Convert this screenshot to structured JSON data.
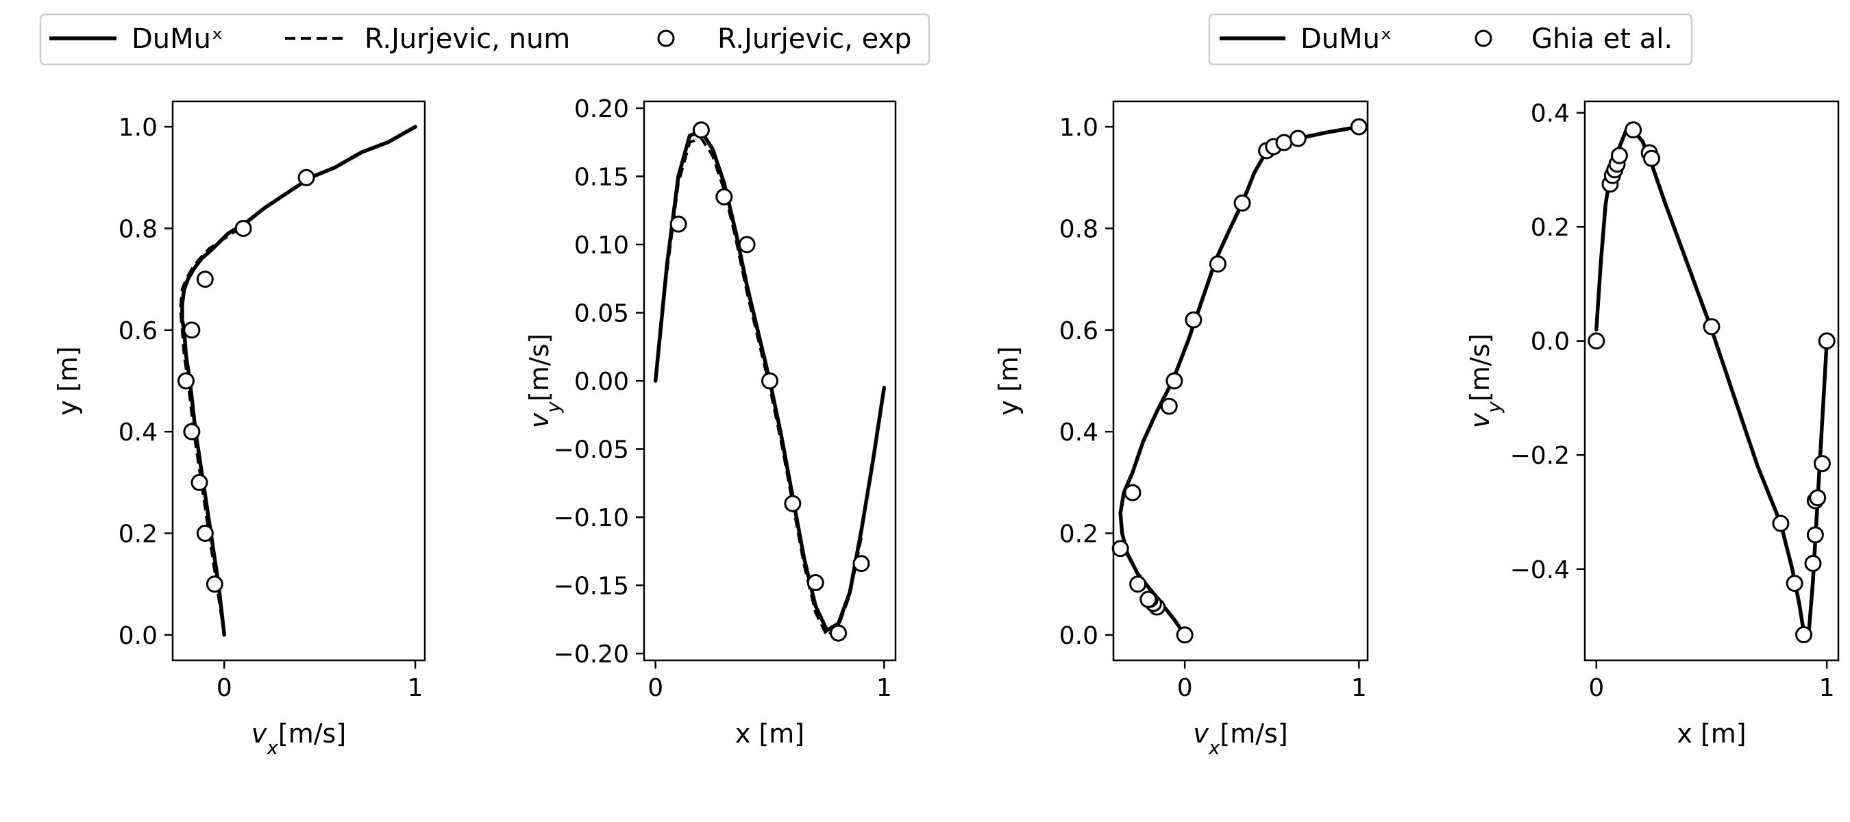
{
  "legends": [
    {
      "entries": [
        {
          "label": "DuMuˣ",
          "style": "solid"
        },
        {
          "label": "R.Jurjevic, num",
          "style": "dashed"
        },
        {
          "label": "R.Jurjevic, exp",
          "style": "marker"
        }
      ]
    },
    {
      "entries": [
        {
          "label": "DuMuˣ",
          "style": "solid"
        },
        {
          "label": "Ghia et al.",
          "style": "marker"
        }
      ]
    }
  ],
  "chart_data": [
    {
      "type": "line",
      "xlabel": "v_x[m/s]",
      "ylabel": "y [m]",
      "xlim": [
        -0.27,
        1.05
      ],
      "ylim": [
        -0.05,
        1.05
      ],
      "xticks": [
        0,
        1
      ],
      "yticks": [
        0.0,
        0.2,
        0.4,
        0.6,
        0.8,
        1.0
      ],
      "ytick_decimals": 1,
      "series": [
        {
          "name": "DuMuˣ",
          "style": "solid",
          "x": [
            0.0,
            -0.03,
            -0.07,
            -0.11,
            -0.15,
            -0.18,
            -0.2,
            -0.21,
            -0.22,
            -0.22,
            -0.21,
            -0.19,
            -0.16,
            -0.12,
            -0.06,
            0.02,
            0.11,
            0.21,
            0.33,
            0.45,
            0.58,
            0.72,
            0.86,
            1.0
          ],
          "y": [
            0.0,
            0.1,
            0.2,
            0.3,
            0.4,
            0.5,
            0.55,
            0.6,
            0.62,
            0.65,
            0.68,
            0.7,
            0.72,
            0.74,
            0.76,
            0.79,
            0.81,
            0.84,
            0.87,
            0.9,
            0.92,
            0.95,
            0.97,
            1.0
          ]
        },
        {
          "name": "R.Jurjevic, num",
          "style": "dashed",
          "x": [
            0.0,
            -0.04,
            -0.08,
            -0.12,
            -0.16,
            -0.19,
            -0.21,
            -0.22,
            -0.23,
            -0.22,
            -0.2,
            -0.17,
            -0.13,
            -0.08,
            0.0,
            0.08
          ],
          "y": [
            0.0,
            0.1,
            0.2,
            0.3,
            0.4,
            0.5,
            0.55,
            0.6,
            0.64,
            0.68,
            0.7,
            0.72,
            0.74,
            0.76,
            0.78,
            0.8
          ]
        },
        {
          "name": "R.Jurjevic, exp",
          "style": "marker",
          "x": [
            -0.05,
            -0.1,
            -0.13,
            -0.17,
            -0.2,
            -0.17,
            -0.1,
            0.1,
            0.43
          ],
          "y": [
            0.1,
            0.2,
            0.3,
            0.4,
            0.5,
            0.6,
            0.7,
            0.8,
            0.9
          ]
        }
      ]
    },
    {
      "type": "line",
      "xlabel": "x [m]",
      "ylabel": "v_y[m/s]",
      "xlim": [
        -0.05,
        1.05
      ],
      "ylim": [
        -0.205,
        0.205
      ],
      "xticks": [
        0,
        1
      ],
      "yticks": [
        -0.2,
        -0.15,
        -0.1,
        -0.05,
        0.0,
        0.05,
        0.1,
        0.15,
        0.2
      ],
      "ytick_decimals": 2,
      "series": [
        {
          "name": "DuMuˣ",
          "style": "solid",
          "x": [
            0.0,
            0.05,
            0.1,
            0.15,
            0.2,
            0.25,
            0.3,
            0.35,
            0.4,
            0.45,
            0.5,
            0.55,
            0.6,
            0.65,
            0.7,
            0.75,
            0.8,
            0.85,
            0.9,
            0.95,
            1.0
          ],
          "y": [
            0.0,
            0.085,
            0.15,
            0.18,
            0.183,
            0.17,
            0.145,
            0.11,
            0.07,
            0.035,
            0.0,
            -0.04,
            -0.085,
            -0.13,
            -0.165,
            -0.183,
            -0.178,
            -0.155,
            -0.11,
            -0.06,
            -0.005
          ]
        },
        {
          "name": "R.Jurjevic, num",
          "style": "dashed",
          "x": [
            0.0,
            0.05,
            0.1,
            0.15,
            0.2,
            0.25,
            0.3,
            0.35,
            0.4,
            0.45,
            0.5,
            0.55,
            0.6,
            0.65,
            0.7,
            0.75,
            0.8,
            0.85,
            0.9
          ],
          "y": [
            0.0,
            0.08,
            0.145,
            0.175,
            0.178,
            0.165,
            0.14,
            0.105,
            0.065,
            0.03,
            -0.005,
            -0.045,
            -0.09,
            -0.135,
            -0.17,
            -0.187,
            -0.18,
            -0.157,
            -0.115
          ]
        },
        {
          "name": "R.Jurjevic, exp",
          "style": "marker",
          "x": [
            0.1,
            0.2,
            0.3,
            0.4,
            0.5,
            0.6,
            0.7,
            0.8,
            0.9
          ],
          "y": [
            0.115,
            0.184,
            0.135,
            0.1,
            0.0,
            -0.09,
            -0.148,
            -0.185,
            -0.134
          ]
        }
      ]
    },
    {
      "type": "line",
      "xlabel": "v_x[m/s]",
      "ylabel": "y [m]",
      "xlim": [
        -0.41,
        1.05
      ],
      "ylim": [
        -0.05,
        1.05
      ],
      "xticks": [
        0,
        1
      ],
      "yticks": [
        0.0,
        0.2,
        0.4,
        0.6,
        0.8,
        1.0
      ],
      "ytick_decimals": 1,
      "series": [
        {
          "name": "DuMuˣ",
          "style": "solid",
          "x": [
            0.0,
            -0.06,
            -0.13,
            -0.2,
            -0.27,
            -0.33,
            -0.36,
            -0.37,
            -0.35,
            -0.3,
            -0.24,
            -0.16,
            -0.07,
            0.02,
            0.1,
            0.18,
            0.26,
            0.33,
            0.4,
            0.45,
            0.47,
            0.51,
            0.57,
            0.65,
            0.8,
            1.0
          ],
          "y": [
            0.0,
            0.03,
            0.06,
            0.09,
            0.12,
            0.16,
            0.2,
            0.24,
            0.28,
            0.32,
            0.38,
            0.44,
            0.5,
            0.58,
            0.66,
            0.74,
            0.8,
            0.85,
            0.91,
            0.94,
            0.955,
            0.962,
            0.968,
            0.977,
            0.988,
            1.0
          ]
        },
        {
          "name": "Ghia et al.",
          "style": "marker",
          "x": [
            0.0,
            -0.16,
            -0.18,
            -0.2,
            -0.21,
            -0.27,
            -0.37,
            -0.3,
            -0.09,
            -0.06,
            0.05,
            0.19,
            0.33,
            0.47,
            0.51,
            0.57,
            0.65,
            1.0
          ],
          "y": [
            0.0,
            0.055,
            0.062,
            0.07,
            0.07,
            0.1,
            0.17,
            0.28,
            0.45,
            0.5,
            0.62,
            0.73,
            0.85,
            0.953,
            0.961,
            0.969,
            0.977,
            1.0
          ]
        }
      ]
    },
    {
      "type": "line",
      "xlabel": "x [m]",
      "ylabel": "v_y[m/s]",
      "xlim": [
        -0.05,
        1.05
      ],
      "ylim": [
        -0.56,
        0.42
      ],
      "xticks": [
        0,
        1
      ],
      "yticks": [
        -0.4,
        -0.2,
        0.0,
        0.2,
        0.4
      ],
      "ytick_decimals": 1,
      "series": [
        {
          "name": "DuMuˣ",
          "style": "solid",
          "x": [
            0.0,
            0.02,
            0.04,
            0.06,
            0.08,
            0.1,
            0.13,
            0.16,
            0.2,
            0.24,
            0.3,
            0.4,
            0.5,
            0.6,
            0.7,
            0.8,
            0.85,
            0.88,
            0.9,
            0.92,
            0.94,
            0.96,
            0.98,
            1.0
          ],
          "y": [
            0.02,
            0.14,
            0.24,
            0.29,
            0.32,
            0.34,
            0.37,
            0.37,
            0.35,
            0.31,
            0.24,
            0.13,
            0.02,
            -0.1,
            -0.22,
            -0.32,
            -0.4,
            -0.46,
            -0.51,
            -0.52,
            -0.42,
            -0.28,
            -0.14,
            0.0
          ]
        },
        {
          "name": "Ghia et al.",
          "style": "marker",
          "x": [
            0.0,
            0.06,
            0.07,
            0.08,
            0.09,
            0.1,
            0.16,
            0.23,
            0.24,
            0.5,
            0.8,
            0.86,
            0.9,
            0.94,
            0.95,
            0.95,
            0.96,
            0.98,
            1.0
          ],
          "y": [
            0.0,
            0.275,
            0.29,
            0.3,
            0.31,
            0.325,
            0.37,
            0.33,
            0.32,
            0.025,
            -0.32,
            -0.425,
            -0.515,
            -0.39,
            -0.34,
            -0.28,
            -0.275,
            -0.215,
            0.0
          ]
        }
      ]
    }
  ]
}
